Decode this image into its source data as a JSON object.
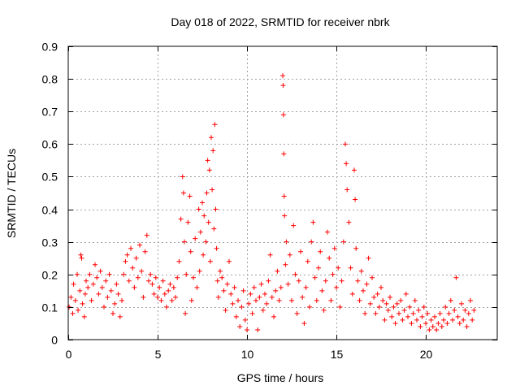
{
  "chart_data": {
    "type": "scatter",
    "title": "Day 018 of 2022, SRMTID for receiver nbrk",
    "xlabel": "GPS time / hours",
    "ylabel": "SRMTID / TECUs",
    "xlim": [
      0,
      24
    ],
    "ylim": [
      0,
      0.9
    ],
    "xticks": [
      0,
      5,
      10,
      15,
      20
    ],
    "xtick_labels": [
      "0",
      "5",
      "10",
      "15",
      "20"
    ],
    "yticks": [
      0,
      0.1,
      0.2,
      0.3,
      0.4,
      0.5,
      0.6,
      0.7,
      0.8,
      0.9
    ],
    "ytick_labels": [
      "0",
      "0.1",
      "0.2",
      "0.3",
      "0.4",
      "0.5",
      "0.6",
      "0.7",
      "0.8",
      "0.9"
    ],
    "grid": true,
    "marker": "plus",
    "color": "#ff0000",
    "series": [
      {
        "name": "SRMTID",
        "points": [
          [
            0.05,
            0.1
          ],
          [
            0.15,
            0.13
          ],
          [
            0.25,
            0.08
          ],
          [
            0.3,
            0.17
          ],
          [
            0.4,
            0.12
          ],
          [
            0.5,
            0.2
          ],
          [
            0.55,
            0.09
          ],
          [
            0.65,
            0.15
          ],
          [
            0.7,
            0.26
          ],
          [
            0.75,
            0.25
          ],
          [
            0.8,
            0.11
          ],
          [
            0.9,
            0.07
          ],
          [
            0.95,
            0.14
          ],
          [
            1.0,
            0.18
          ],
          [
            1.1,
            0.16
          ],
          [
            1.2,
            0.2
          ],
          [
            1.3,
            0.12
          ],
          [
            1.4,
            0.17
          ],
          [
            1.5,
            0.23
          ],
          [
            1.6,
            0.19
          ],
          [
            1.7,
            0.14
          ],
          [
            1.8,
            0.21
          ],
          [
            1.9,
            0.16
          ],
          [
            2.0,
            0.1
          ],
          [
            2.1,
            0.18
          ],
          [
            2.2,
            0.13
          ],
          [
            2.3,
            0.2
          ],
          [
            2.4,
            0.15
          ],
          [
            2.5,
            0.08
          ],
          [
            2.6,
            0.11
          ],
          [
            2.7,
            0.17
          ],
          [
            2.8,
            0.14
          ],
          [
            2.9,
            0.07
          ],
          [
            3.0,
            0.12
          ],
          [
            3.1,
            0.2
          ],
          [
            3.2,
            0.24
          ],
          [
            3.3,
            0.26
          ],
          [
            3.4,
            0.18
          ],
          [
            3.5,
            0.28
          ],
          [
            3.6,
            0.22
          ],
          [
            3.7,
            0.16
          ],
          [
            3.8,
            0.25
          ],
          [
            3.9,
            0.19
          ],
          [
            4.0,
            0.29
          ],
          [
            4.1,
            0.21
          ],
          [
            4.2,
            0.13
          ],
          [
            4.3,
            0.27
          ],
          [
            4.4,
            0.32
          ],
          [
            4.5,
            0.18
          ],
          [
            4.6,
            0.2
          ],
          [
            4.7,
            0.17
          ],
          [
            4.8,
            0.14
          ],
          [
            4.9,
            0.19
          ],
          [
            5.0,
            0.13
          ],
          [
            5.1,
            0.16
          ],
          [
            5.2,
            0.12
          ],
          [
            5.3,
            0.18
          ],
          [
            5.4,
            0.14
          ],
          [
            5.5,
            0.1
          ],
          [
            5.6,
            0.15
          ],
          [
            5.7,
            0.17
          ],
          [
            5.8,
            0.12
          ],
          [
            5.9,
            0.16
          ],
          [
            6.0,
            0.13
          ],
          [
            6.1,
            0.19
          ],
          [
            6.2,
            0.24
          ],
          [
            6.3,
            0.37
          ],
          [
            6.4,
            0.5
          ],
          [
            6.45,
            0.45
          ],
          [
            6.5,
            0.3
          ],
          [
            6.55,
            0.08
          ],
          [
            6.6,
            0.2
          ],
          [
            6.7,
            0.36
          ],
          [
            6.8,
            0.44
          ],
          [
            6.85,
            0.27
          ],
          [
            6.9,
            0.12
          ],
          [
            7.0,
            0.19
          ],
          [
            7.1,
            0.31
          ],
          [
            7.2,
            0.16
          ],
          [
            7.3,
            0.4
          ],
          [
            7.35,
            0.21
          ],
          [
            7.4,
            0.33
          ],
          [
            7.5,
            0.42
          ],
          [
            7.55,
            0.26
          ],
          [
            7.6,
            0.38
          ],
          [
            7.7,
            0.3
          ],
          [
            7.75,
            0.45
          ],
          [
            7.8,
            0.55
          ],
          [
            7.85,
            0.36
          ],
          [
            7.9,
            0.52
          ],
          [
            7.95,
            0.24
          ],
          [
            8.0,
            0.62
          ],
          [
            8.05,
            0.46
          ],
          [
            8.1,
            0.58
          ],
          [
            8.15,
            0.34
          ],
          [
            8.2,
            0.66
          ],
          [
            8.25,
            0.4
          ],
          [
            8.3,
            0.28
          ],
          [
            8.35,
            0.18
          ],
          [
            8.4,
            0.13
          ],
          [
            8.5,
            0.21
          ],
          [
            8.6,
            0.19
          ],
          [
            8.7,
            0.15
          ],
          [
            8.8,
            0.09
          ],
          [
            8.9,
            0.17
          ],
          [
            9.0,
            0.24
          ],
          [
            9.1,
            0.14
          ],
          [
            9.2,
            0.11
          ],
          [
            9.3,
            0.16
          ],
          [
            9.4,
            0.07
          ],
          [
            9.5,
            0.12
          ],
          [
            9.6,
            0.04
          ],
          [
            9.7,
            0.1
          ],
          [
            9.8,
            0.15
          ],
          [
            9.9,
            0.06
          ],
          [
            10.0,
            0.03
          ],
          [
            10.1,
            0.11
          ],
          [
            10.2,
            0.14
          ],
          [
            10.3,
            0.08
          ],
          [
            10.4,
            0.16
          ],
          [
            10.5,
            0.12
          ],
          [
            10.6,
            0.03
          ],
          [
            10.7,
            0.13
          ],
          [
            10.8,
            0.17
          ],
          [
            10.9,
            0.09
          ],
          [
            11.0,
            0.14
          ],
          [
            11.1,
            0.11
          ],
          [
            11.2,
            0.18
          ],
          [
            11.3,
            0.26
          ],
          [
            11.4,
            0.13
          ],
          [
            11.5,
            0.07
          ],
          [
            11.6,
            0.15
          ],
          [
            11.7,
            0.21
          ],
          [
            11.8,
            0.12
          ],
          [
            11.9,
            0.16
          ],
          [
            12.0,
            0.81
          ],
          [
            12.02,
            0.78
          ],
          [
            12.04,
            0.69
          ],
          [
            12.06,
            0.57
          ],
          [
            12.08,
            0.44
          ],
          [
            12.1,
            0.38
          ],
          [
            12.15,
            0.23
          ],
          [
            12.2,
            0.3
          ],
          [
            12.3,
            0.17
          ],
          [
            12.4,
            0.26
          ],
          [
            12.5,
            0.12
          ],
          [
            12.6,
            0.35
          ],
          [
            12.7,
            0.2
          ],
          [
            12.8,
            0.08
          ],
          [
            12.9,
            0.18
          ],
          [
            13.0,
            0.27
          ],
          [
            13.1,
            0.13
          ],
          [
            13.2,
            0.05
          ],
          [
            13.3,
            0.16
          ],
          [
            13.4,
            0.24
          ],
          [
            13.5,
            0.1
          ],
          [
            13.6,
            0.3
          ],
          [
            13.7,
            0.36
          ],
          [
            13.8,
            0.19
          ],
          [
            13.9,
            0.12
          ],
          [
            14.0,
            0.22
          ],
          [
            14.1,
            0.27
          ],
          [
            14.2,
            0.15
          ],
          [
            14.3,
            0.09
          ],
          [
            14.4,
            0.18
          ],
          [
            14.5,
            0.33
          ],
          [
            14.6,
            0.25
          ],
          [
            14.7,
            0.12
          ],
          [
            14.8,
            0.2
          ],
          [
            14.9,
            0.28
          ],
          [
            15.0,
            0.16
          ],
          [
            15.1,
            0.22
          ],
          [
            15.2,
            0.1
          ],
          [
            15.3,
            0.18
          ],
          [
            15.4,
            0.3
          ],
          [
            15.5,
            0.6
          ],
          [
            15.55,
            0.54
          ],
          [
            15.6,
            0.46
          ],
          [
            15.7,
            0.36
          ],
          [
            15.8,
            0.22
          ],
          [
            15.9,
            0.14
          ],
          [
            16.0,
            0.52
          ],
          [
            16.05,
            0.43
          ],
          [
            16.1,
            0.28
          ],
          [
            16.2,
            0.18
          ],
          [
            16.3,
            0.12
          ],
          [
            16.4,
            0.21
          ],
          [
            16.5,
            0.15
          ],
          [
            16.6,
            0.08
          ],
          [
            16.7,
            0.17
          ],
          [
            16.8,
            0.25
          ],
          [
            16.9,
            0.11
          ],
          [
            17.0,
            0.19
          ],
          [
            17.1,
            0.13
          ],
          [
            17.2,
            0.08
          ],
          [
            17.3,
            0.14
          ],
          [
            17.4,
            0.1
          ],
          [
            17.5,
            0.16
          ],
          [
            17.6,
            0.12
          ],
          [
            17.7,
            0.06
          ],
          [
            17.8,
            0.11
          ],
          [
            17.9,
            0.09
          ],
          [
            18.0,
            0.13
          ],
          [
            18.1,
            0.07
          ],
          [
            18.2,
            0.1
          ],
          [
            18.3,
            0.05
          ],
          [
            18.4,
            0.11
          ],
          [
            18.5,
            0.08
          ],
          [
            18.6,
            0.12
          ],
          [
            18.7,
            0.06
          ],
          [
            18.8,
            0.09
          ],
          [
            18.9,
            0.14
          ],
          [
            19.0,
            0.07
          ],
          [
            19.1,
            0.1
          ],
          [
            19.2,
            0.05
          ],
          [
            19.3,
            0.08
          ],
          [
            19.4,
            0.12
          ],
          [
            19.5,
            0.06
          ],
          [
            19.6,
            0.09
          ],
          [
            19.7,
            0.04
          ],
          [
            19.8,
            0.07
          ],
          [
            19.9,
            0.1
          ],
          [
            20.0,
            0.05
          ],
          [
            20.1,
            0.08
          ],
          [
            20.2,
            0.03
          ],
          [
            20.3,
            0.06
          ],
          [
            20.4,
            0.04
          ],
          [
            20.5,
            0.07
          ],
          [
            20.6,
            0.03
          ],
          [
            20.7,
            0.05
          ],
          [
            20.8,
            0.08
          ],
          [
            20.9,
            0.04
          ],
          [
            21.0,
            0.06
          ],
          [
            21.1,
            0.1
          ],
          [
            21.2,
            0.05
          ],
          [
            21.3,
            0.08
          ],
          [
            21.4,
            0.12
          ],
          [
            21.5,
            0.06
          ],
          [
            21.6,
            0.09
          ],
          [
            21.7,
            0.19
          ],
          [
            21.8,
            0.07
          ],
          [
            21.9,
            0.05
          ],
          [
            22.0,
            0.11
          ],
          [
            22.1,
            0.06
          ],
          [
            22.2,
            0.09
          ],
          [
            22.3,
            0.04
          ],
          [
            22.4,
            0.08
          ],
          [
            22.5,
            0.12
          ],
          [
            22.6,
            0.06
          ],
          [
            22.7,
            0.09
          ]
        ]
      }
    ]
  }
}
